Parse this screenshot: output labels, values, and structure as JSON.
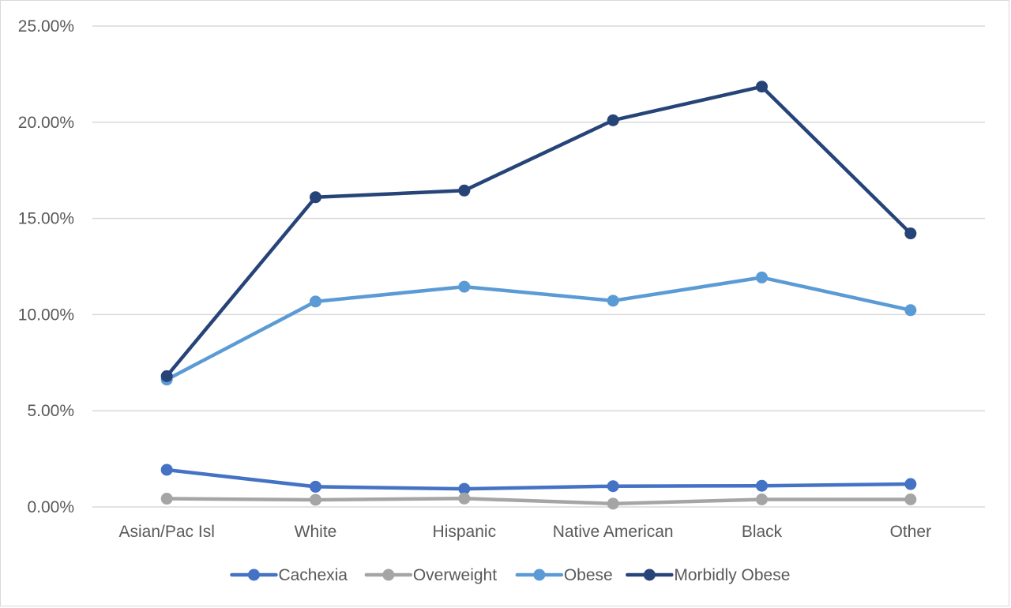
{
  "chart_data": {
    "type": "line",
    "title": "",
    "xlabel": "",
    "ylabel": "",
    "categories": [
      "Asian/Pac Isl",
      "White",
      "Hispanic",
      "Native American",
      "Black",
      "Other"
    ],
    "ylim": [
      0,
      0.25
    ],
    "yticks": [
      0,
      0.05,
      0.1,
      0.15,
      0.2,
      0.25
    ],
    "ytick_labels": [
      "0.00%",
      "5.00%",
      "10.00%",
      "15.00%",
      "20.00%",
      "25.00%"
    ],
    "grid": true,
    "legend_position": "bottom",
    "series": [
      {
        "name": "Cachexia",
        "color": "#4472c4",
        "values": [
          0.0193,
          0.0105,
          0.0094,
          0.0108,
          0.011,
          0.0119
        ]
      },
      {
        "name": "Overweight",
        "color": "#a5a5a5",
        "values": [
          0.0043,
          0.0037,
          0.0044,
          0.0017,
          0.0039,
          0.0039
        ]
      },
      {
        "name": "Obese",
        "color": "#5b9bd5",
        "values": [
          0.0662,
          0.1068,
          0.1145,
          0.1072,
          0.1193,
          0.1023
        ]
      },
      {
        "name": "Morbidly Obese",
        "color": "#264478",
        "values": [
          0.068,
          0.161,
          0.1645,
          0.201,
          0.2185,
          0.1422
        ]
      }
    ]
  }
}
